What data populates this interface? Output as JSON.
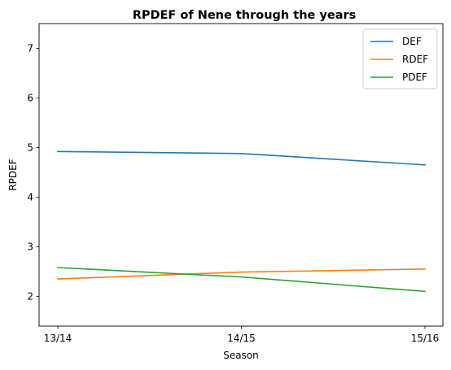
{
  "chart_data": {
    "type": "line",
    "title": "RPDEF of Nene through the years",
    "xlabel": "Season",
    "ylabel": "RPDEF",
    "categories": [
      "13/14",
      "14/15",
      "15/16"
    ],
    "ylim": [
      1.4,
      7.5
    ],
    "yticks": [
      2,
      3,
      4,
      5,
      6,
      7
    ],
    "grid": false,
    "legend_position": "top-right",
    "series": [
      {
        "name": "DEF",
        "color": "#1f77b4",
        "values": [
          4.92,
          4.88,
          4.65
        ]
      },
      {
        "name": "RDEF",
        "color": "#ff7f0e",
        "values": [
          2.35,
          2.49,
          2.55
        ]
      },
      {
        "name": "PDEF",
        "color": "#2ca02c",
        "values": [
          2.58,
          2.39,
          2.1
        ]
      }
    ]
  }
}
